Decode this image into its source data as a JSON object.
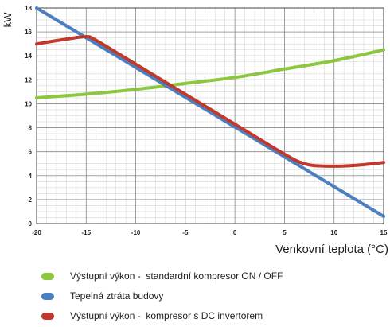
{
  "chart_data": {
    "type": "line",
    "ylabel": "kW",
    "xlabel": "Venkovní teplota (°C)",
    "xlim": [
      -20,
      15
    ],
    "ylim": [
      0,
      18
    ],
    "x_ticks": [
      "-20",
      "-15",
      "-10",
      "-5",
      "0",
      "5",
      "10",
      "15"
    ],
    "y_ticks": [
      "0",
      "2",
      "4",
      "6",
      "8",
      "10",
      "12",
      "14",
      "16",
      "18"
    ],
    "grid": true,
    "legend_position": "bottom",
    "series": [
      {
        "name": "Výstupní výkon -  standardní kompresor ON / OFF",
        "color": "#8dc63f",
        "x": [
          -20,
          -15,
          -10,
          -5,
          0,
          5,
          10,
          15
        ],
        "y": [
          10.5,
          10.8,
          11.2,
          11.7,
          12.2,
          12.9,
          13.6,
          14.5
        ]
      },
      {
        "name": "Tepelná ztráta budovy",
        "color": "#4a7fc1",
        "x": [
          -20,
          15
        ],
        "y": [
          18,
          0.6
        ]
      },
      {
        "name": "Výstupní výkon -  kompresor s DC invertorem",
        "color": "#c0392b",
        "x": [
          -20,
          -17,
          -15,
          -14,
          -10,
          -5,
          0,
          5,
          7,
          9,
          12,
          15
        ],
        "y": [
          15,
          15.4,
          15.6,
          15.3,
          13.3,
          10.8,
          8.3,
          5.8,
          5.0,
          4.8,
          4.85,
          5.1
        ]
      }
    ]
  }
}
